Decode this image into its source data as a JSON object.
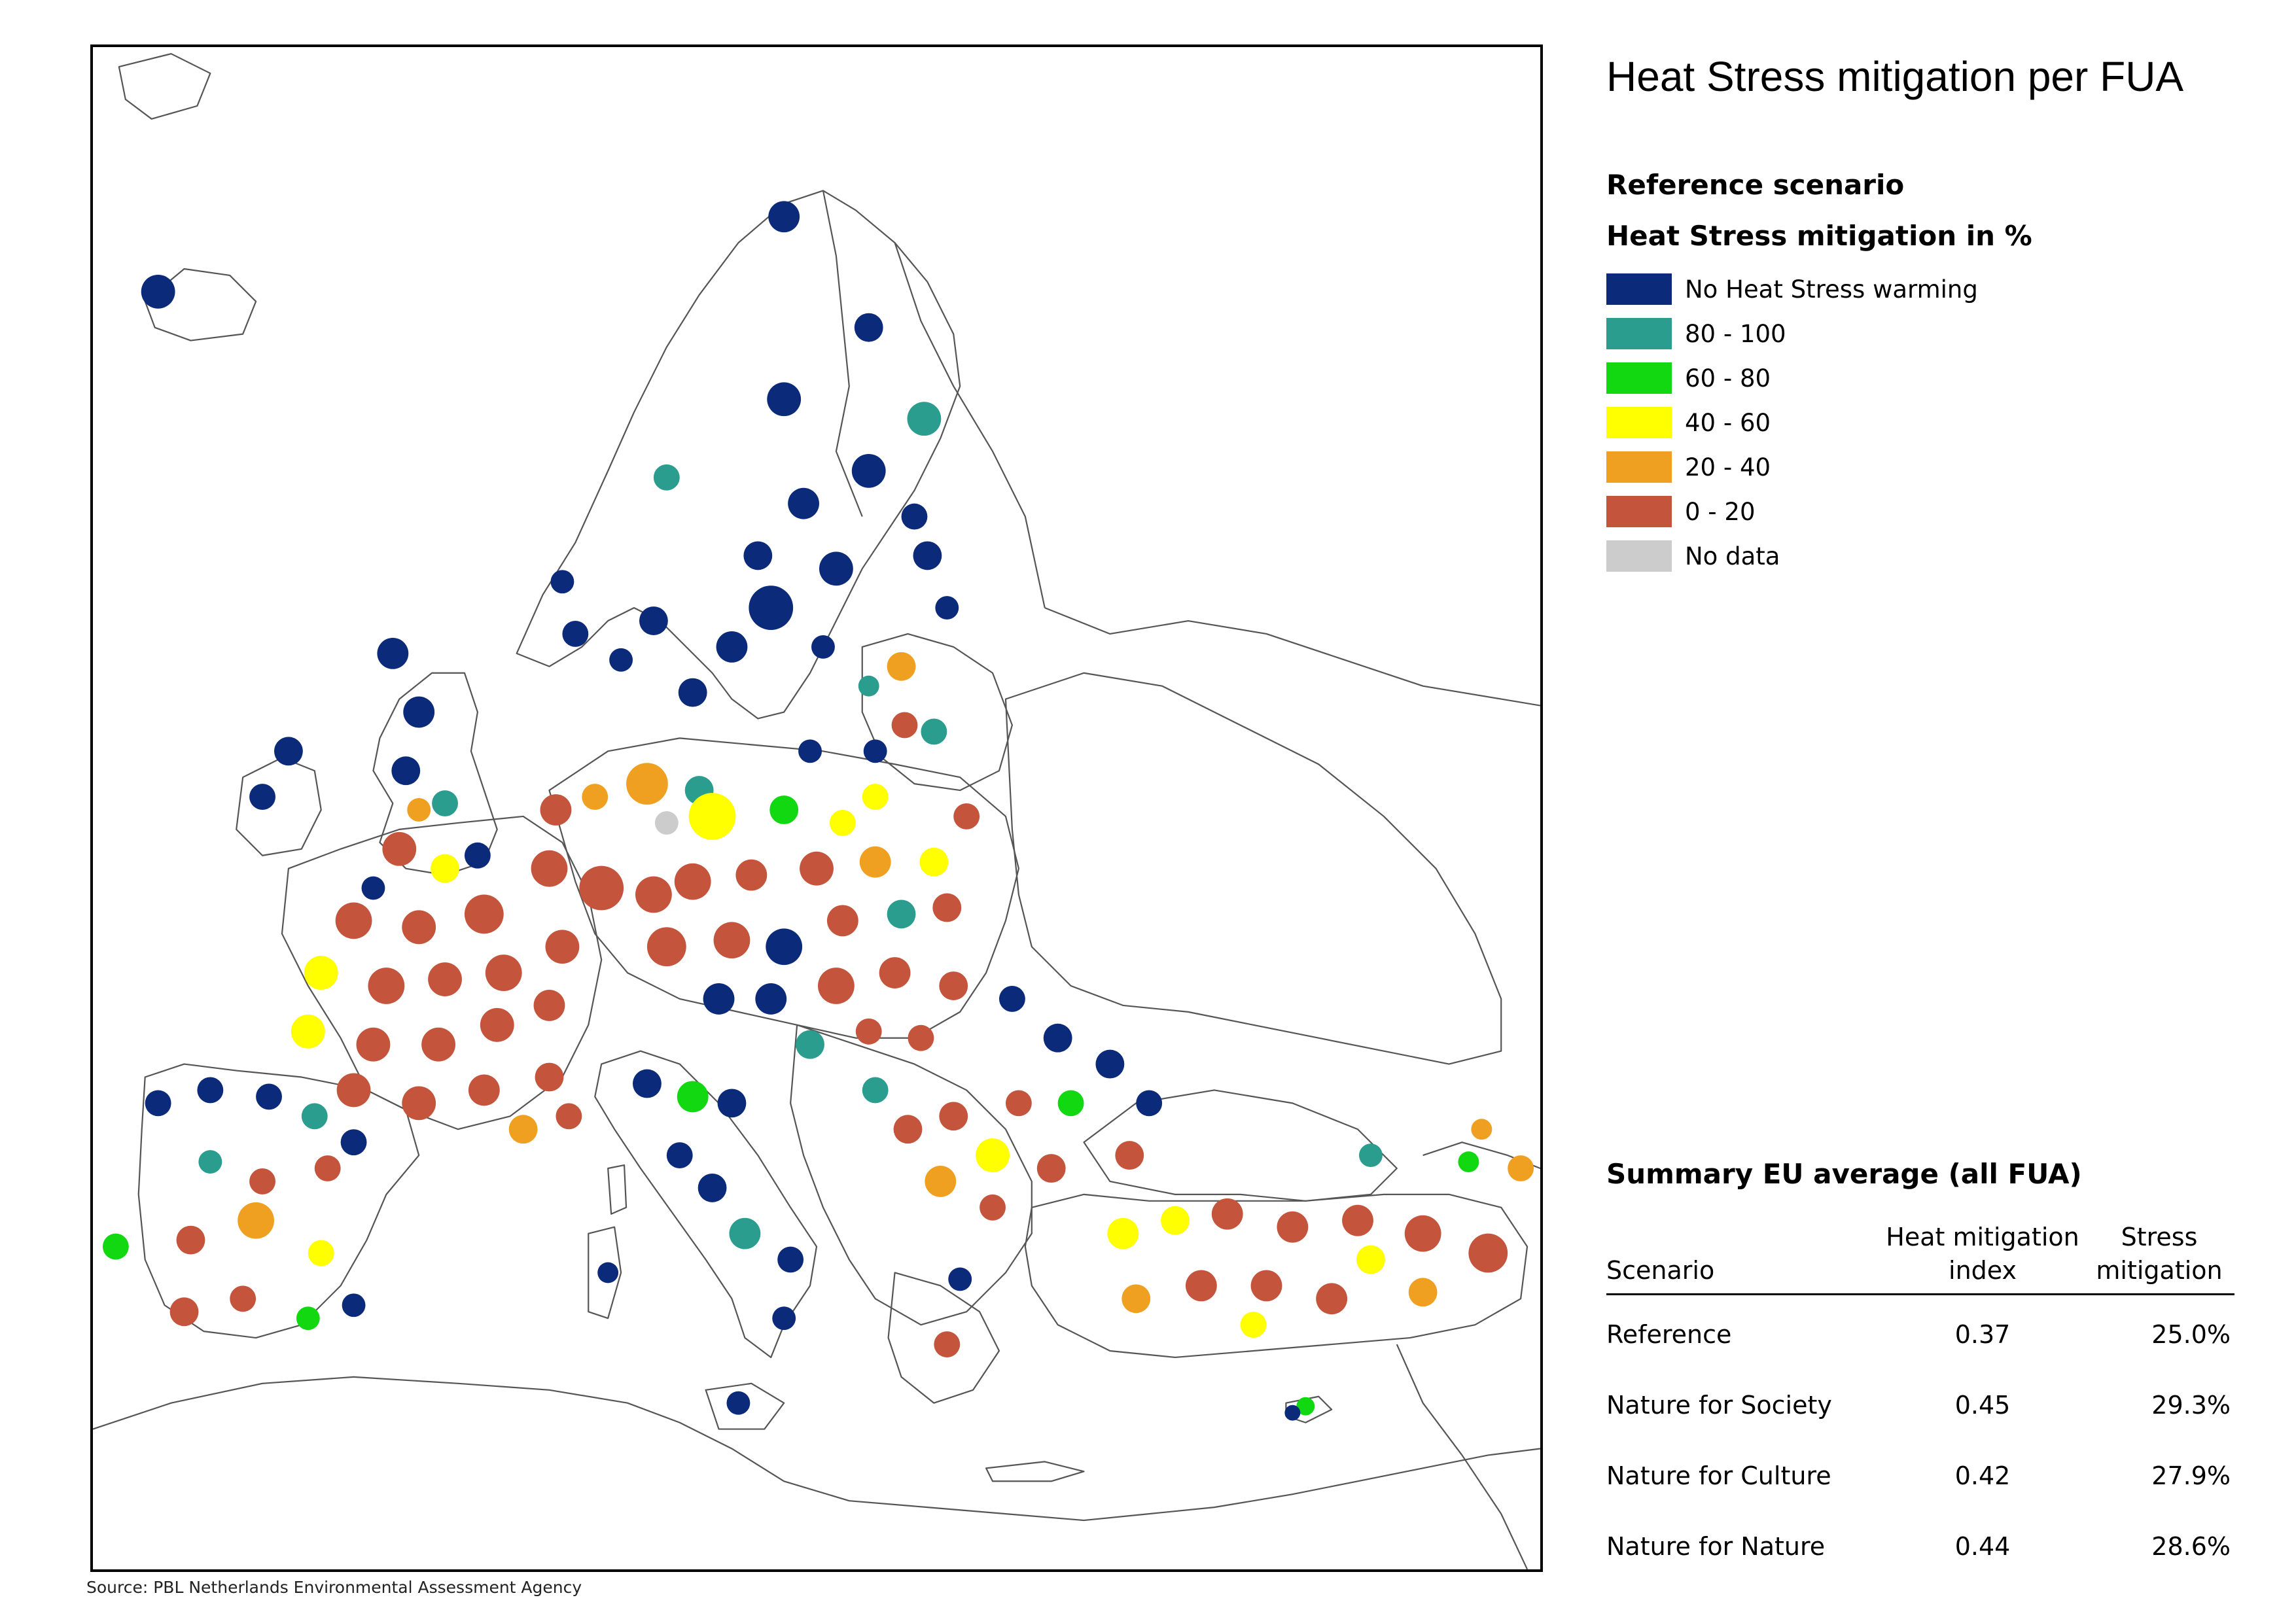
{
  "title": "Heat Stress mitigation per FUA",
  "legend": {
    "subtitle": "Reference scenario",
    "title": "Heat Stress mitigation in %",
    "items": [
      {
        "label": "No Heat Stress warming",
        "color": "#0b2a7a"
      },
      {
        "label": "80 - 100",
        "color": "#2a9d8f"
      },
      {
        "label": "60 - 80",
        "color": "#12d812"
      },
      {
        "label": "40 - 60",
        "color": "#ffff00"
      },
      {
        "label": "20 - 40",
        "color": "#f0a020"
      },
      {
        "label": "0 - 20",
        "color": "#c4543c"
      },
      {
        "label": "No data",
        "color": "#cccccc"
      }
    ]
  },
  "summary": {
    "title": "Summary EU average (all FUA)",
    "columns": [
      "Scenario",
      "Heat mitigation index",
      "Stress mitigation"
    ],
    "rows": [
      {
        "scenario": "Reference",
        "index": "0.37",
        "stress": "25.0%"
      },
      {
        "scenario": "Nature for Society",
        "index": "0.45",
        "stress": "29.3%"
      },
      {
        "scenario": "Nature for Culture",
        "index": "0.42",
        "stress": "27.9%"
      },
      {
        "scenario": "Nature for Nature",
        "index": "0.44",
        "stress": "28.6%"
      }
    ]
  },
  "source": "Source: PBL Netherlands Environmental Assessment Agency"
}
